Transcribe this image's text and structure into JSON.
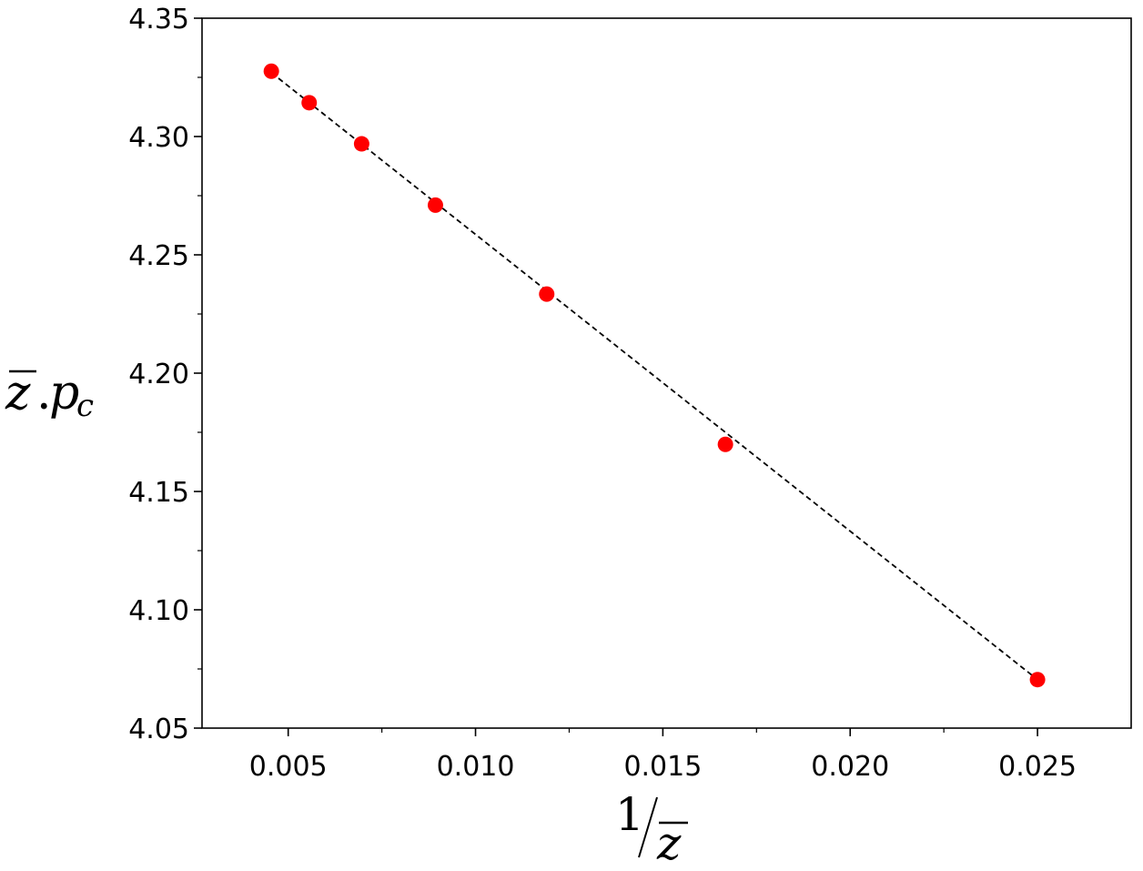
{
  "chart_data": {
    "type": "scatter",
    "title": "",
    "xlabel": "1/z̄",
    "ylabel": "z̄.p_c",
    "xlim": [
      0.0027,
      0.0275
    ],
    "ylim": [
      4.05,
      4.35
    ],
    "x_ticks": [
      0.005,
      0.01,
      0.015,
      0.02,
      0.025
    ],
    "x_tick_labels": [
      "0.005",
      "0.010",
      "0.015",
      "0.020",
      "0.025"
    ],
    "x_minor_ticks": [
      0.0075,
      0.0125,
      0.0175,
      0.0225
    ],
    "y_ticks": [
      4.05,
      4.1,
      4.15,
      4.2,
      4.25,
      4.3,
      4.35
    ],
    "y_tick_labels": [
      "4.05",
      "4.10",
      "4.15",
      "4.20",
      "4.25",
      "4.30",
      "4.35"
    ],
    "y_minor_ticks": [
      4.075,
      4.125,
      4.175,
      4.225,
      4.275,
      4.325
    ],
    "grid": false,
    "legend": "none",
    "series": [
      {
        "marker": "circle",
        "color": "#ff0000",
        "x": [
          0.00455,
          0.00556,
          0.00696,
          0.00893,
          0.0119,
          0.01667,
          0.025
        ],
        "y": [
          4.3276,
          4.3143,
          4.2969,
          4.271,
          4.2334,
          4.1699,
          4.0705
        ]
      }
    ],
    "fit_line": {
      "style": "dashed",
      "color": "#000000",
      "x": [
        0.00455,
        0.025
      ],
      "y": [
        4.327,
        4.0705
      ]
    }
  }
}
